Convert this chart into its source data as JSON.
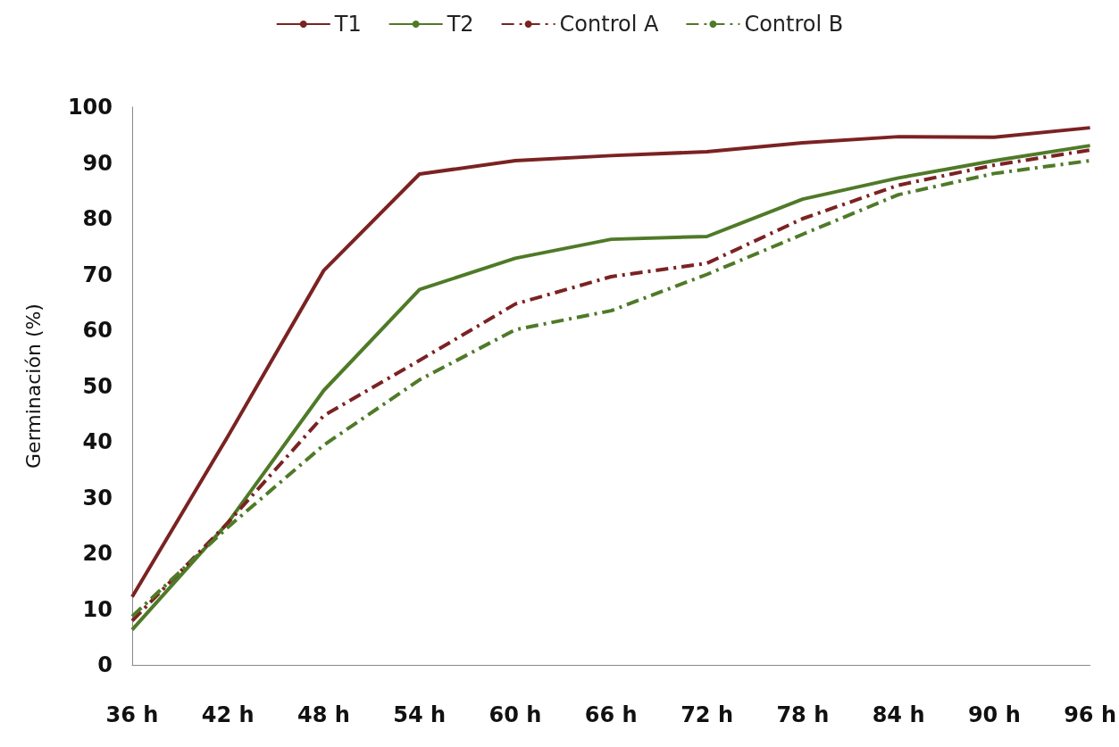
{
  "chart_data": {
    "type": "line",
    "ylabel": "Germinación (%)",
    "categories": [
      "36 h",
      "42 h",
      "48 h",
      "54 h",
      "60 h",
      "66 h",
      "72 h",
      "78 h",
      "84 h",
      "90 h",
      "96 h"
    ],
    "series": [
      {
        "name": "T1",
        "color": "#7b2222",
        "line_style": "solid",
        "values": [
          12.2,
          41,
          70.7,
          88,
          90.4,
          91.3,
          92,
          93.6,
          94.7,
          94.6,
          96.3
        ]
      },
      {
        "name": "T2",
        "color": "#4f7a28",
        "line_style": "solid",
        "values": [
          6.3,
          25.5,
          49.2,
          67.3,
          72.9,
          76.3,
          76.8,
          83.5,
          87.3,
          90.4,
          93.1
        ]
      },
      {
        "name": "Control A",
        "color": "#7b2222",
        "line_style": "dashed",
        "values": [
          7.9,
          25.5,
          44.7,
          54.6,
          64.7,
          69.6,
          72,
          80,
          86,
          89.6,
          92.3
        ]
      },
      {
        "name": "Control B",
        "color": "#4f7a28",
        "line_style": "dashed",
        "values": [
          8.7,
          24.7,
          39.4,
          51.1,
          60.1,
          63.5,
          70,
          77.2,
          84.3,
          88.1,
          90.4
        ]
      }
    ],
    "ylim": [
      0,
      100
    ],
    "yticks": [
      0,
      10,
      20,
      30,
      40,
      50,
      60,
      70,
      80,
      90,
      100
    ],
    "grid": false,
    "legend": "top",
    "marker": "none"
  }
}
